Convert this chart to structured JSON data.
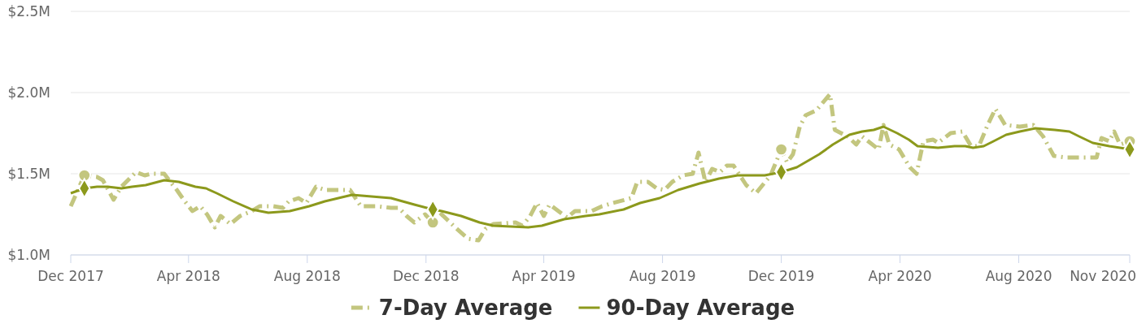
{
  "chart_data": {
    "type": "line",
    "legend": "bottom",
    "grid": "y",
    "xlim": [
      "2017-12-01",
      "2020-11-23"
    ],
    "xticks": [
      {
        "value": "2017-12-01",
        "label": "Dec 2017"
      },
      {
        "value": "2018-04-01",
        "label": "Apr 2018"
      },
      {
        "value": "2018-08-01",
        "label": "Aug 2018"
      },
      {
        "value": "2018-12-01",
        "label": "Dec 2018"
      },
      {
        "value": "2019-04-01",
        "label": "Apr 2019"
      },
      {
        "value": "2019-08-01",
        "label": "Aug 2019"
      },
      {
        "value": "2019-12-01",
        "label": "Dec 2019"
      },
      {
        "value": "2020-04-01",
        "label": "Apr 2020"
      },
      {
        "value": "2020-08-01",
        "label": "Aug 2020"
      },
      {
        "value": "2020-11-23",
        "label": "Nov 2020"
      }
    ],
    "ylim": [
      1,
      2.5
    ],
    "yticks": [
      {
        "value": 1,
        "label": "$1.0M"
      },
      {
        "value": 1.5,
        "label": "$1.5M"
      },
      {
        "value": 2,
        "label": "$2.0M"
      },
      {
        "value": 2.5,
        "label": "$2.5M"
      }
    ],
    "series": [
      {
        "name": "7-Day Average",
        "color": "#c3c67f",
        "line_style": "dashed",
        "x": [
          "2017-12-01",
          "2017-12-15",
          "2017-12-28",
          "2018-01-03",
          "2018-01-14",
          "2018-01-22",
          "2018-02-06",
          "2018-02-15",
          "2018-02-22",
          "2018-03-07",
          "2018-03-12",
          "2018-03-20",
          "2018-03-27",
          "2018-04-05",
          "2018-04-13",
          "2018-04-20",
          "2018-04-28",
          "2018-05-04",
          "2018-05-14",
          "2018-05-24",
          "2018-06-05",
          "2018-06-13",
          "2018-06-27",
          "2018-07-07",
          "2018-07-13",
          "2018-07-23",
          "2018-07-31",
          "2018-08-10",
          "2018-08-19",
          "2018-09-14",
          "2018-09-25",
          "2018-10-11",
          "2018-10-26",
          "2018-11-03",
          "2018-11-11",
          "2018-11-19",
          "2018-11-30",
          "2018-12-08",
          "2018-12-17",
          "2018-12-31",
          "2019-01-13",
          "2019-01-24",
          "2019-01-31",
          "2019-02-08",
          "2019-03-03",
          "2019-03-10",
          "2019-03-18",
          "2019-03-25",
          "2019-04-01",
          "2019-04-07",
          "2019-04-16",
          "2019-04-25",
          "2019-05-03",
          "2019-05-20",
          "2019-05-31",
          "2019-06-11",
          "2019-06-30",
          "2019-07-06",
          "2019-07-17",
          "2019-07-26",
          "2019-08-03",
          "2019-08-11",
          "2019-08-22",
          "2019-09-01",
          "2019-09-07",
          "2019-09-14",
          "2019-09-21",
          "2019-09-29",
          "2019-10-06",
          "2019-10-13",
          "2019-10-26",
          "2019-11-05",
          "2019-11-20",
          "2019-12-01",
          "2019-12-07",
          "2019-12-13",
          "2019-12-20",
          "2019-12-26",
          "2020-01-06",
          "2020-01-20",
          "2020-01-25",
          "2020-02-07",
          "2020-02-16",
          "2020-02-22",
          "2020-03-10",
          "2020-03-15",
          "2020-03-21",
          "2020-03-31",
          "2020-04-11",
          "2020-04-18",
          "2020-04-25",
          "2020-05-05",
          "2020-05-10",
          "2020-05-23",
          "2020-06-04",
          "2020-06-13",
          "2020-06-21",
          "2020-06-30",
          "2020-07-08",
          "2020-07-18",
          "2020-08-02",
          "2020-08-16",
          "2020-08-26",
          "2020-09-06",
          "2020-09-19",
          "2020-10-20",
          "2020-10-25",
          "2020-11-02",
          "2020-11-07",
          "2020-11-13",
          "2020-11-23"
        ],
        "values": [
          1.3,
          1.49,
          1.48,
          1.46,
          1.34,
          1.42,
          1.51,
          1.49,
          1.5,
          1.5,
          1.46,
          1.4,
          1.34,
          1.27,
          1.3,
          1.25,
          1.17,
          1.24,
          1.19,
          1.24,
          1.27,
          1.3,
          1.3,
          1.29,
          1.33,
          1.35,
          1.32,
          1.42,
          1.4,
          1.4,
          1.3,
          1.3,
          1.29,
          1.29,
          1.24,
          1.2,
          1.25,
          1.2,
          1.25,
          1.17,
          1.1,
          1.09,
          1.16,
          1.19,
          1.2,
          1.18,
          1.24,
          1.32,
          1.24,
          1.31,
          1.27,
          1.23,
          1.27,
          1.27,
          1.3,
          1.32,
          1.35,
          1.45,
          1.45,
          1.41,
          1.4,
          1.45,
          1.49,
          1.5,
          1.63,
          1.45,
          1.53,
          1.51,
          1.55,
          1.55,
          1.43,
          1.38,
          1.49,
          1.65,
          1.57,
          1.62,
          1.79,
          1.86,
          1.89,
          1.99,
          1.77,
          1.73,
          1.68,
          1.73,
          1.65,
          1.8,
          1.68,
          1.65,
          1.54,
          1.5,
          1.7,
          1.71,
          1.69,
          1.75,
          1.76,
          1.67,
          1.67,
          1.8,
          1.9,
          1.8,
          1.79,
          1.8,
          1.73,
          1.61,
          1.6,
          1.6,
          1.72,
          1.7,
          1.76,
          1.68,
          1.7
        ]
      },
      {
        "name": "90-Day Average",
        "color": "#8c991c",
        "line_style": "solid",
        "x": [
          "2017-12-01",
          "2017-12-15",
          "2017-12-28",
          "2018-01-08",
          "2018-01-22",
          "2018-02-02",
          "2018-02-16",
          "2018-03-07",
          "2018-03-22",
          "2018-04-08",
          "2018-04-19",
          "2018-04-30",
          "2018-05-17",
          "2018-06-05",
          "2018-06-22",
          "2018-07-14",
          "2018-08-03",
          "2018-08-19",
          "2018-09-16",
          "2018-10-06",
          "2018-10-26",
          "2018-11-19",
          "2018-12-08",
          "2018-12-17",
          "2019-01-06",
          "2019-01-25",
          "2019-02-08",
          "2019-03-16",
          "2019-03-30",
          "2019-04-22",
          "2019-05-14",
          "2019-05-28",
          "2019-06-22",
          "2019-07-09",
          "2019-07-29",
          "2019-08-17",
          "2019-09-08",
          "2019-09-28",
          "2019-10-17",
          "2019-11-03",
          "2019-11-14",
          "2019-12-01",
          "2019-12-17",
          "2020-01-09",
          "2020-01-23",
          "2020-02-09",
          "2020-02-22",
          "2020-03-05",
          "2020-03-15",
          "2020-03-29",
          "2020-04-10",
          "2020-04-19",
          "2020-05-10",
          "2020-05-27",
          "2020-06-07",
          "2020-06-15",
          "2020-06-26",
          "2020-07-06",
          "2020-07-19",
          "2020-08-02",
          "2020-08-18",
          "2020-09-07",
          "2020-09-22",
          "2020-10-02",
          "2020-10-16",
          "2020-11-02",
          "2020-11-13",
          "2020-11-23"
        ],
        "values": [
          1.38,
          1.41,
          1.42,
          1.42,
          1.41,
          1.42,
          1.43,
          1.46,
          1.45,
          1.42,
          1.41,
          1.38,
          1.33,
          1.28,
          1.26,
          1.27,
          1.3,
          1.33,
          1.37,
          1.36,
          1.35,
          1.31,
          1.28,
          1.27,
          1.24,
          1.2,
          1.18,
          1.17,
          1.18,
          1.22,
          1.24,
          1.25,
          1.28,
          1.32,
          1.35,
          1.4,
          1.44,
          1.47,
          1.49,
          1.49,
          1.49,
          1.51,
          1.54,
          1.62,
          1.68,
          1.74,
          1.76,
          1.77,
          1.79,
          1.75,
          1.71,
          1.67,
          1.66,
          1.67,
          1.67,
          1.66,
          1.67,
          1.7,
          1.74,
          1.76,
          1.78,
          1.77,
          1.76,
          1.73,
          1.69,
          1.67,
          1.66,
          1.65
        ]
      },
      {
        "type": "scatter",
        "color": "#c3c67f",
        "marker": "circle",
        "x": [
          "2017-12-15",
          "2018-12-08",
          "2019-12-01",
          "2020-11-23"
        ],
        "values": [
          1.49,
          1.2,
          1.65,
          1.7
        ]
      },
      {
        "type": "scatter",
        "color": "#8c991c",
        "marker": "diamond",
        "x": [
          "2017-12-15",
          "2018-12-08",
          "2019-12-01",
          "2020-11-23"
        ],
        "values": [
          1.41,
          1.28,
          1.51,
          1.65
        ]
      }
    ]
  }
}
